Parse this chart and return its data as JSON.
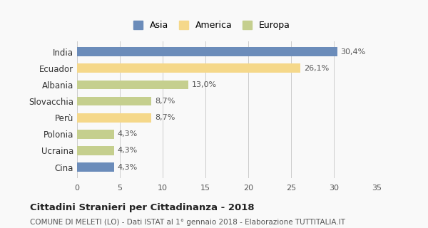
{
  "categories": [
    "India",
    "Ecuador",
    "Albania",
    "Slovacchia",
    "Perù",
    "Polonia",
    "Ucraina",
    "Cina"
  ],
  "values": [
    30.4,
    26.1,
    13.0,
    8.7,
    8.7,
    4.3,
    4.3,
    4.3
  ],
  "labels": [
    "30,4%",
    "26,1%",
    "13,0%",
    "8,7%",
    "8,7%",
    "4,3%",
    "4,3%",
    "4,3%"
  ],
  "continents": [
    "Asia",
    "America",
    "Europa",
    "Europa",
    "America",
    "Europa",
    "Europa",
    "Asia"
  ],
  "colors": {
    "Asia": "#6b8cba",
    "America": "#f5d88a",
    "Europa": "#c5cf8e"
  },
  "legend_items": [
    "Asia",
    "America",
    "Europa"
  ],
  "xlim": [
    0,
    35
  ],
  "xticks": [
    0,
    5,
    10,
    15,
    20,
    25,
    30,
    35
  ],
  "title": "Cittadini Stranieri per Cittadinanza - 2018",
  "subtitle": "COMUNE DI MELETI (LO) - Dati ISTAT al 1° gennaio 2018 - Elaborazione TUTTITALIA.IT",
  "bg_color": "#f9f9f9",
  "grid_color": "#cccccc",
  "bar_height": 0.55
}
